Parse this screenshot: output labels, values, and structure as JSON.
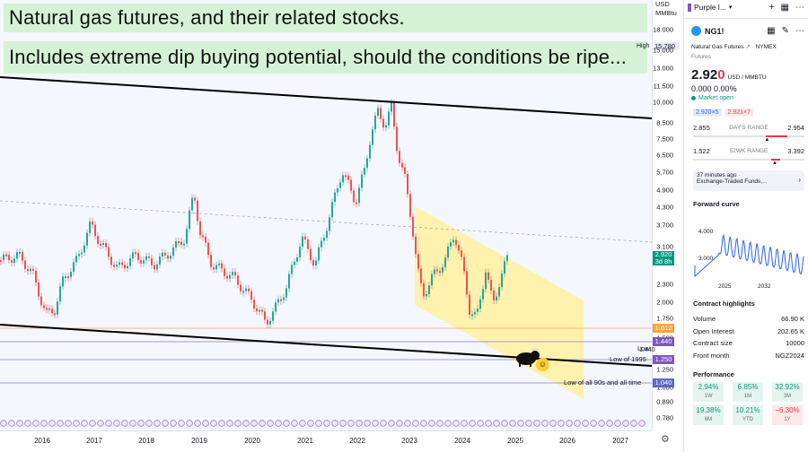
{
  "banner": {
    "line1": "Natural gas futures, and their related stocks.",
    "line2": "Includes extreme dip buying potential, should the conditions be ripe..."
  },
  "axis": {
    "currency": "USD",
    "unit": "MMBtu",
    "high_label": "High",
    "high_value": "15.780",
    "ticks": [
      "18.000",
      "15.000",
      "13.000",
      "11.500",
      "10.000",
      "8.500",
      "7.500",
      "6.500",
      "5.700",
      "4.900",
      "4.300",
      "3.700",
      "3.100",
      "2.300",
      "2.000",
      "1.750",
      "1.500",
      "1.250",
      "1.000",
      "0.890",
      "0.780"
    ],
    "price_tag": "2.920",
    "price_time": "3d 8h",
    "tag_1612": "1.612",
    "tag_1440": "1.440",
    "tag_1250": "1.250",
    "tag_1040": "1.040"
  },
  "annotations": {
    "low": "Low",
    "low_value": "1.440",
    "low1995": "Low of 1995",
    "low90s": "Low of all 90s and all time"
  },
  "xaxis": {
    "years": [
      "2016",
      "2017",
      "2018",
      "2019",
      "2020",
      "2021",
      "2022",
      "2023",
      "2024",
      "2025",
      "2026",
      "2027"
    ]
  },
  "panel": {
    "watchlist": "Purple l...",
    "symbol": "NG1!",
    "name": "Natural Gas Futures",
    "exchange": "NYMEX",
    "category": "Futures",
    "price_main": "2.92",
    "price_last": "0",
    "price_unit": "USD / MMBTU",
    "change": "0.000",
    "change_pct": "0.00%",
    "market_status": "Market open",
    "bid": "2.920×5",
    "ask": "2.921×7",
    "day_low": "2.855",
    "day_label": "DAY'S RANGE",
    "day_high": "2.954",
    "wk_low": "1.522",
    "wk_label": "52WK RANGE",
    "wk_high": "3.392",
    "news_time": "37 minutes ago ·",
    "news_title": "Exchange-Traded Funds,...",
    "curve_title": "Forward curve",
    "curve_y_high": "4.000",
    "curve_y_low": "3.000",
    "curve_x1": "2025",
    "curve_x2": "2032",
    "highlights_title": "Contract highlights",
    "highlights": [
      {
        "k": "Volume",
        "v": "66.90 K"
      },
      {
        "k": "Open Interest",
        "v": "202.65 K"
      },
      {
        "k": "Contract size",
        "v": "10000"
      },
      {
        "k": "Front month",
        "v": "NGZ2024"
      }
    ],
    "perf_title": "Performance",
    "perf": [
      {
        "v": "2.94%",
        "p": "1W",
        "neg": false
      },
      {
        "v": "6.85%",
        "p": "1M",
        "neg": false
      },
      {
        "v": "32.92%",
        "p": "3M",
        "neg": false
      },
      {
        "v": "19.38%",
        "p": "6M",
        "neg": false
      },
      {
        "v": "10.21%",
        "p": "YTD",
        "neg": false
      },
      {
        "v": "−6.30%",
        "p": "1Y",
        "neg": true
      }
    ]
  },
  "colors": {
    "up": "#089981",
    "down": "#f23645",
    "accent": "#2962ff",
    "channel": "#fff1a0",
    "purple": "#7e57c2"
  },
  "icons": [
    "bull-icon",
    "face-icon",
    "gear-icon",
    "pencil-icon",
    "grid-icon",
    "plus-icon",
    "more-icon",
    "flame-icon"
  ]
}
